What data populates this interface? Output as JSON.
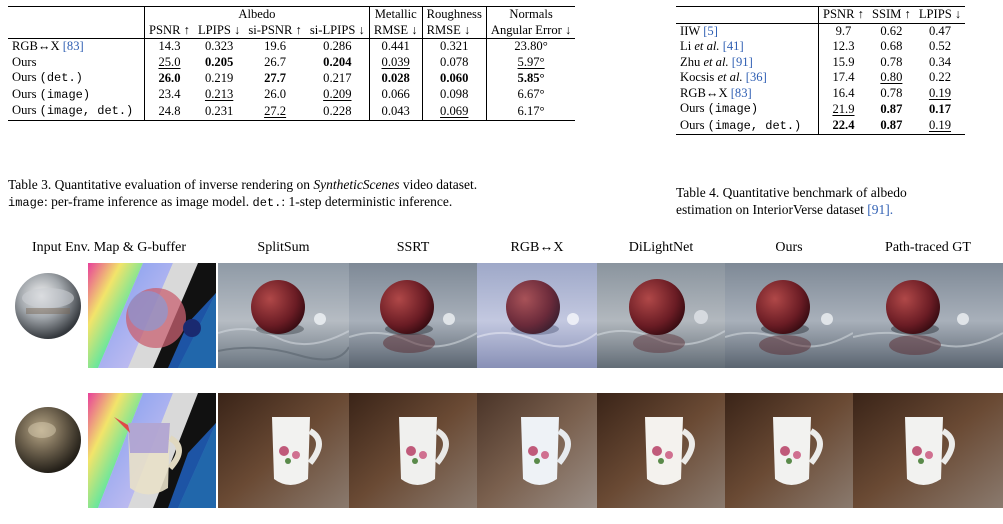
{
  "table3": {
    "group_headers": [
      "Albedo",
      "Metallic",
      "Roughness",
      "Normals"
    ],
    "sub_headers": [
      "PSNR ↑",
      "LPIPS ↓",
      "si-PSNR ↑",
      "si-LPIPS ↓",
      "RMSE ↓",
      "RMSE ↓",
      "Angular Error ↓"
    ],
    "rows": [
      {
        "name": "RGB↔X ",
        "cite": "[83]",
        "tag": "",
        "v": [
          "14.3",
          "0.323",
          "19.6",
          "0.286",
          "0.441",
          "0.321",
          "23.80°"
        ],
        "bold": [],
        "ul": []
      },
      {
        "name": "Ours",
        "cite": "",
        "tag": "",
        "v": [
          "25.0",
          "0.205",
          "26.7",
          "0.204",
          "0.039",
          "0.078",
          "5.97°"
        ],
        "bold": [
          1,
          3
        ],
        "ul": [
          0,
          4,
          6
        ]
      },
      {
        "name": "Ours ",
        "cite": "",
        "tag": "(det.)",
        "v": [
          "26.0",
          "0.219",
          "27.7",
          "0.217",
          "0.028",
          "0.060",
          "5.85°"
        ],
        "bold": [
          0,
          2,
          4,
          5,
          6
        ],
        "ul": []
      },
      {
        "name": "Ours ",
        "cite": "",
        "tag": "(image)",
        "v": [
          "23.4",
          "0.213",
          "26.0",
          "0.209",
          "0.066",
          "0.098",
          "6.67°"
        ],
        "bold": [],
        "ul": [
          1,
          3
        ]
      },
      {
        "name": "Ours ",
        "cite": "",
        "tag": "(image, det.)",
        "v": [
          "24.8",
          "0.231",
          "27.2",
          "0.228",
          "0.043",
          "0.069",
          "6.17°"
        ],
        "bold": [],
        "ul": [
          2,
          5
        ]
      }
    ],
    "caption_line1": "Table 3.  Quantitative evaluation of inverse rendering on SyntheticScenes video dataset.",
    "caption_line2_mono": "image",
    "caption_line2_rest": ": per-frame inference as image model. ",
    "caption_line2_mono2": "det.",
    "caption_line2_end": ": 1-step deterministic inference."
  },
  "table4": {
    "headers": [
      "PSNR ↑",
      "SSIM ↑",
      "LPIPS ↓"
    ],
    "rows": [
      {
        "name": "IIW ",
        "cite": "[5]",
        "tag": "",
        "v": [
          "9.7",
          "0.62",
          "0.47"
        ],
        "bold": [],
        "ul": []
      },
      {
        "name": "Li et al. ",
        "cite": "[41]",
        "tag": "",
        "v": [
          "12.3",
          "0.68",
          "0.52"
        ],
        "bold": [],
        "ul": []
      },
      {
        "name": "Zhu et al. ",
        "cite": "[91]",
        "tag": "",
        "v": [
          "15.9",
          "0.78",
          "0.34"
        ],
        "bold": [],
        "ul": []
      },
      {
        "name": "Kocsis et al. ",
        "cite": "[36]",
        "tag": "",
        "v": [
          "17.4",
          "0.80",
          "0.22"
        ],
        "bold": [],
        "ul": [
          1
        ]
      },
      {
        "name": "RGB↔X ",
        "cite": "[83]",
        "tag": "",
        "v": [
          "16.4",
          "0.78",
          "0.19"
        ],
        "bold": [],
        "ul": [
          2
        ]
      },
      {
        "name": "Ours ",
        "cite": "",
        "tag": "(image)",
        "v": [
          "21.9",
          "0.87",
          "0.17"
        ],
        "bold": [
          1,
          2
        ],
        "ul": [
          0
        ]
      },
      {
        "name": "Ours ",
        "cite": "",
        "tag": "(image, det.)",
        "v": [
          "22.4",
          "0.87",
          "0.19"
        ],
        "bold": [
          0,
          1
        ],
        "ul": [
          2
        ]
      }
    ],
    "caption_line1": "Table 4.  Quantitative benchmark of albedo",
    "caption_line2": "estimation on InteriorVerse dataset ",
    "caption_cite": "[91]."
  },
  "figure": {
    "col_labels": [
      "Input Env. Map & G-buffer",
      "SplitSum",
      "SSRT",
      "RGB↔X",
      "DiLightNet",
      "Ours",
      "Path-traced GT"
    ]
  }
}
